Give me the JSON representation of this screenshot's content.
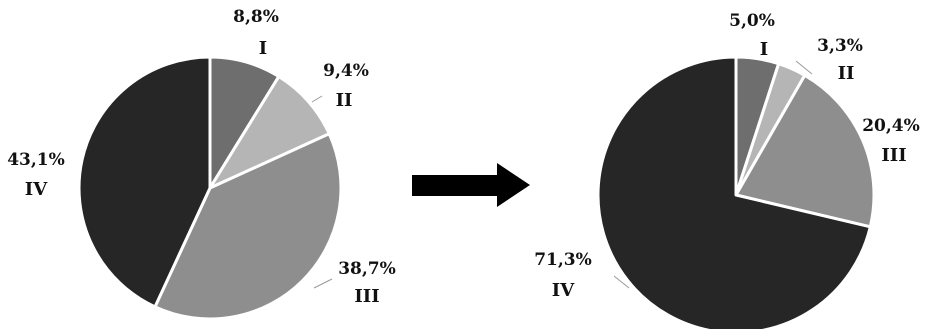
{
  "chart_data": [
    {
      "type": "pie",
      "title": "",
      "slices": [
        {
          "label": "I",
          "pct_label": "8,8%",
          "value": 8.8,
          "color": "#6e6e6e"
        },
        {
          "label": "II",
          "pct_label": "9,4%",
          "value": 9.4,
          "color": "#b5b5b5"
        },
        {
          "label": "III",
          "pct_label": "38,7%",
          "value": 38.7,
          "color": "#8e8e8e"
        },
        {
          "label": "IV",
          "pct_label": "43,1%",
          "value": 43.1,
          "color": "#262626"
        }
      ]
    },
    {
      "type": "pie",
      "title": "",
      "slices": [
        {
          "label": "I",
          "pct_label": "5,0%",
          "value": 5.0,
          "color": "#6e6e6e"
        },
        {
          "label": "II",
          "pct_label": "3,3%",
          "value": 3.3,
          "color": "#b5b5b5"
        },
        {
          "label": "III",
          "pct_label": "20,4%",
          "value": 20.4,
          "color": "#8e8e8e"
        },
        {
          "label": "IV",
          "pct_label": "71,3%",
          "value": 71.3,
          "color": "#262626"
        }
      ]
    }
  ],
  "arrow": {
    "icon": "right-arrow-icon",
    "color": "#000000"
  }
}
